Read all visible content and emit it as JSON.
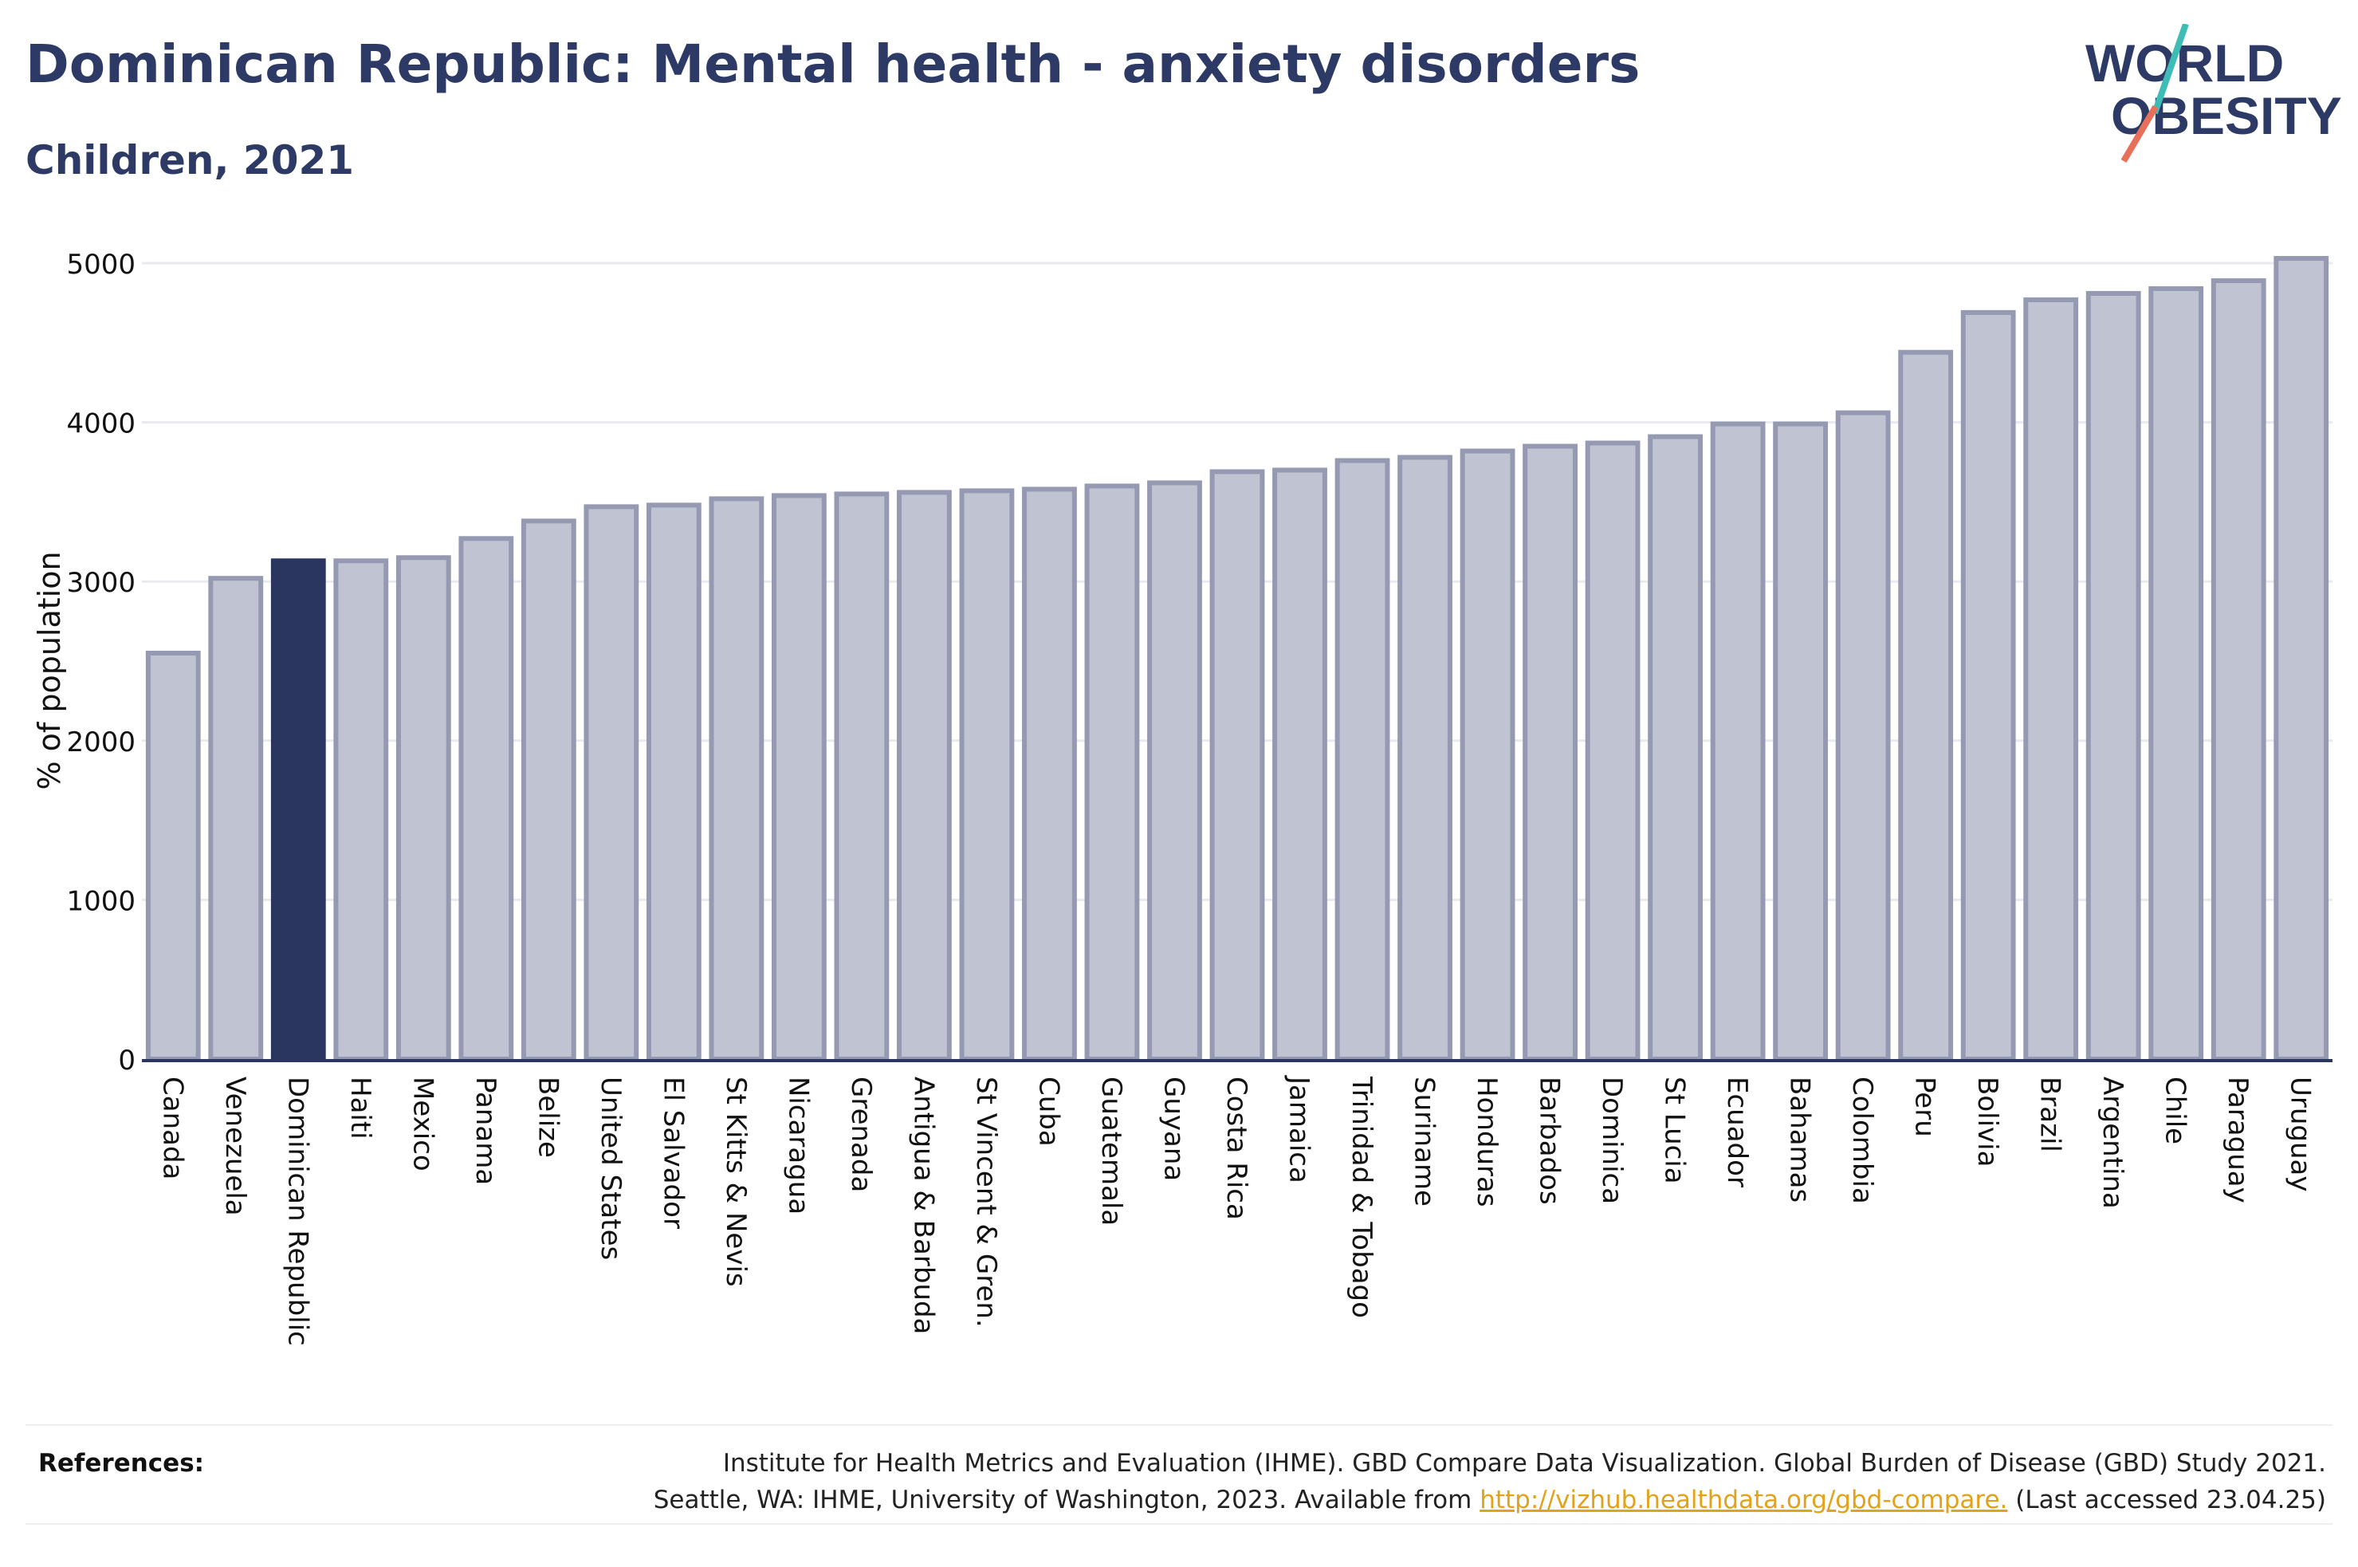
{
  "header": {
    "title": "Dominican Republic: Mental health - anxiety disorders",
    "subtitle": "Children, 2021"
  },
  "logo": {
    "line1": "WORLD",
    "line2": "OBESITY"
  },
  "colors": {
    "highlight": "#2b3660",
    "bar_fill": "#c0c3d2",
    "bar_stroke": "#9599b1",
    "axis": "#2b3660",
    "grid": "#e8eaef",
    "logo_teal": "#3dbdb6",
    "logo_coral": "#e8705a",
    "link": "#e2a21a"
  },
  "chart_data": {
    "type": "bar",
    "ylabel": "% of population",
    "ylim": [
      0,
      5000
    ],
    "yticks": [
      0,
      1000,
      2000,
      3000,
      4000,
      5000
    ],
    "grid": true,
    "highlight": "Dominican Republic",
    "categories": [
      "Canada",
      "Venezuela",
      "Dominican Republic",
      "Haiti",
      "Mexico",
      "Panama",
      "Belize",
      "United States",
      "El Salvador",
      "St Kitts & Nevis",
      "Nicaragua",
      "Grenada",
      "Antigua & Barbuda",
      "St Vincent & Gren.",
      "Cuba",
      "Guatemala",
      "Guyana",
      "Costa Rica",
      "Jamaica",
      "Trinidad & Tobago",
      "Suriname",
      "Honduras",
      "Barbados",
      "Dominica",
      "St Lucia",
      "Ecuador",
      "Bahamas",
      "Colombia",
      "Peru",
      "Bolivia",
      "Brazil",
      "Argentina",
      "Chile",
      "Paraguay",
      "Uruguay"
    ],
    "values": [
      2550,
      3020,
      3130,
      3130,
      3150,
      3270,
      3380,
      3470,
      3480,
      3520,
      3540,
      3550,
      3560,
      3570,
      3580,
      3600,
      3620,
      3690,
      3700,
      3760,
      3780,
      3820,
      3850,
      3870,
      3910,
      3990,
      3990,
      4060,
      4440,
      4690,
      4770,
      4810,
      4840,
      4890,
      5030
    ]
  },
  "references": {
    "label": "References:",
    "line1": "Institute for Health Metrics and Evaluation (IHME). GBD Compare Data Visualization. Global Burden of Disease (GBD) Study 2021.",
    "line2_prefix": "Seattle, WA: IHME, University of Washington, 2023. Available from ",
    "link": "http://vizhub.healthdata.org/gbd-compare.",
    "line2_suffix": " (Last accessed 23.04.25)"
  }
}
